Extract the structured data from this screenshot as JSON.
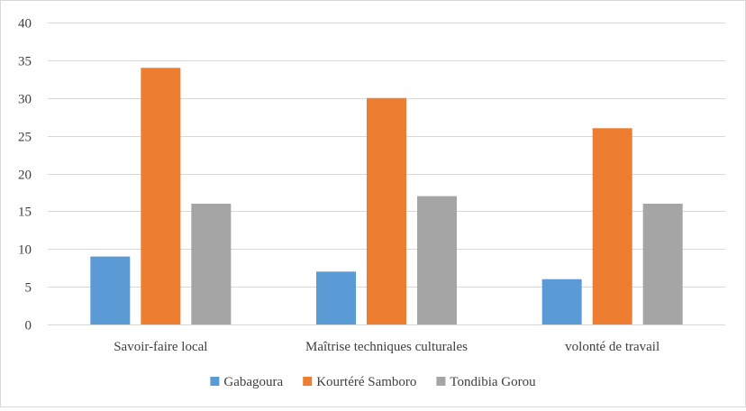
{
  "chart_data": {
    "type": "bar",
    "title": "",
    "xlabel": "",
    "ylabel": "",
    "categories": [
      "Savoir-faire local",
      "Maîtrise techniques culturales",
      "volonté de travail"
    ],
    "series": [
      {
        "name": "Gabagoura",
        "color": "#5b9bd5",
        "values": [
          9,
          7,
          6
        ]
      },
      {
        "name": "Kourtéré Samboro",
        "color": "#ed7d31",
        "values": [
          34,
          30,
          26
        ]
      },
      {
        "name": "Tondibia Gorou",
        "color": "#a5a5a5",
        "values": [
          16,
          17,
          16
        ]
      }
    ],
    "ylim": [
      0,
      40
    ],
    "yticks": [
      0,
      5,
      10,
      15,
      20,
      25,
      30,
      35,
      40
    ],
    "grid": true,
    "legend_position": "bottom"
  }
}
